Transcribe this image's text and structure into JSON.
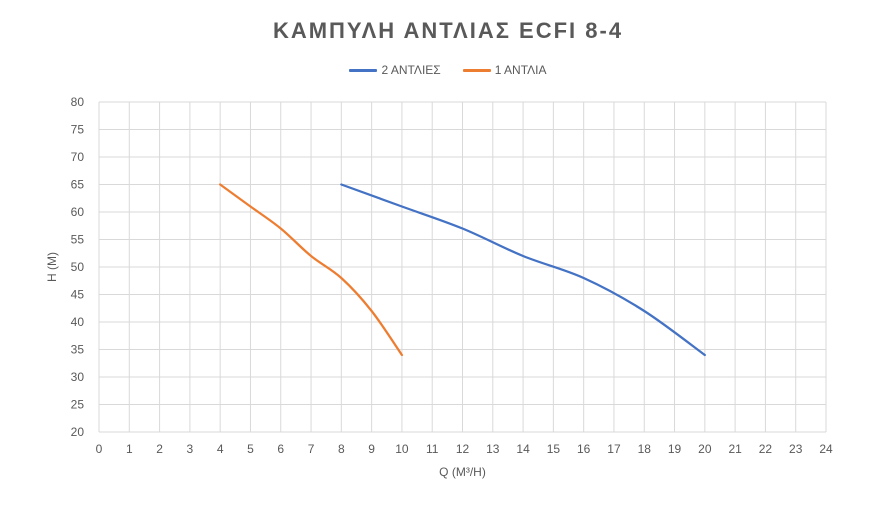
{
  "chart_data": {
    "type": "line",
    "title": "ΚΑΜΠΥΛΗ ΑΝΤΛΙΑΣ ECFI 8-4",
    "xlabel": "Q (M³/H)",
    "ylabel": "H (M)",
    "xlim": [
      0,
      24
    ],
    "ylim": [
      20,
      80
    ],
    "x_ticks": [
      0,
      1,
      2,
      3,
      4,
      5,
      6,
      7,
      8,
      9,
      10,
      11,
      12,
      13,
      14,
      15,
      16,
      17,
      18,
      19,
      20,
      21,
      22,
      23,
      24
    ],
    "y_ticks": [
      20,
      25,
      30,
      35,
      40,
      45,
      50,
      55,
      60,
      65,
      70,
      75,
      80
    ],
    "grid": true,
    "legend_position": "top",
    "series": [
      {
        "name": "2 ΑΝΤΛΙΕΣ",
        "color": "#4472c4",
        "x": [
          8,
          10,
          12,
          14,
          16,
          18,
          20
        ],
        "y": [
          65,
          61,
          57,
          52,
          48,
          42,
          34
        ]
      },
      {
        "name": "1 ΑΝΤΛΙΑ",
        "color": "#ed7d31",
        "x": [
          4,
          5,
          6,
          7,
          8,
          9,
          10
        ],
        "y": [
          65,
          61,
          57,
          52,
          48,
          42,
          34
        ]
      }
    ]
  }
}
